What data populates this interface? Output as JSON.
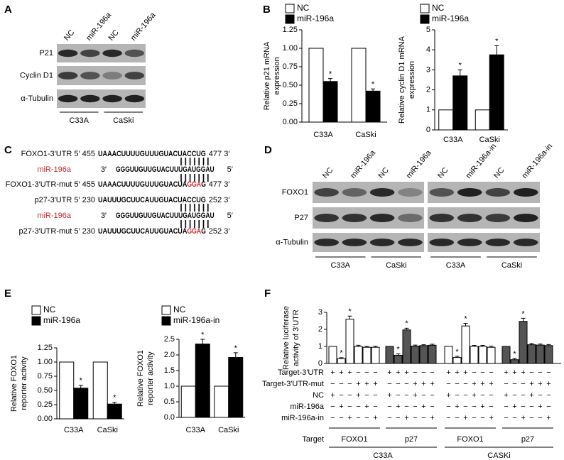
{
  "panel_labels": [
    "A",
    "B",
    "C",
    "D",
    "E",
    "F"
  ],
  "blots": [
    {
      "lanes": [
        "NC",
        "miR-196a",
        "NC",
        "miR-196a"
      ],
      "rows": [
        "P21",
        "Cyclin D1",
        "α-Tubulin"
      ],
      "groups": [
        "C33A",
        "CaSki"
      ]
    },
    {
      "lanes": [
        "NC",
        "miR-196a",
        "NC",
        "miR-196a",
        "NC",
        "miR-196a-in",
        "NC",
        "miR-196a-in"
      ],
      "rows": [
        "FOXO1",
        "P27",
        "α-Tubulin"
      ],
      "groups": [
        "C33A",
        "CaSki",
        "C33A",
        "CaSki"
      ]
    }
  ],
  "sequences": [
    {
      "prefix": "FOXO1-3′UTR 5′ 455",
      "seq": "UAAACUUUUGUUUGUACUACCUG",
      "suffix": "477 3′"
    },
    {
      "name": "miR-196a",
      "end": "3′",
      "seq": "GGGUUGUUGUACUUUGAUGGAU",
      "suffix": "5′"
    },
    {
      "prefix": "FOXO1-3′UTR-mut 5′ 455",
      "seq": "UAAACUUUUGUUUGUACUA",
      "mut": "GGA",
      "seq_end": "G",
      "suffix": "477 3′"
    },
    {
      "prefix": "p27-3′UTR 5′ 230",
      "seq": "UAUUUGCUUCAUUGUACUACCUG",
      "suffix": "252 3′"
    },
    {
      "name": "miR-196a",
      "end": "3′",
      "seq": "GGGUUGUUGUACUUUGAUGGAU",
      "suffix": "5′"
    },
    {
      "prefix": "p27-3′UTR-mut 5′ 230",
      "seq": "UAUUUGCUUCAUUGUACUA",
      "mut": "GGA",
      "seq_end": "G",
      "suffix": "252 3′"
    }
  ],
  "chart_data": [
    {
      "type": "bar",
      "ylabel": [
        "Relative p21 mRNA",
        "expression"
      ],
      "categories": [
        "C33A",
        "CaSki"
      ],
      "series": [
        {
          "name": "NC",
          "color": "#ffffff",
          "values": [
            1,
            1
          ]
        },
        {
          "name": "miR-196a",
          "color": "#000000",
          "values": [
            0.55,
            0.42
          ],
          "errors": [
            0.04,
            0.03
          ],
          "significance": [
            "*",
            "*"
          ]
        }
      ],
      "ylim": [
        0,
        1.25
      ],
      "yticks": [
        {
          "value": 0,
          "label": "0.00"
        },
        0.25,
        {
          "value": 0.5,
          "label": "0.50"
        },
        0.75,
        {
          "value": 1,
          "label": "1.00"
        },
        1.25
      ]
    },
    {
      "type": "bar",
      "ylabel": [
        "Relative cyclin D1 mRNA",
        "expression"
      ],
      "categories": [
        "C33A",
        "CaSki"
      ],
      "series": [
        {
          "name": "NC",
          "color": "#ffffff",
          "values": [
            1,
            1
          ]
        },
        {
          "name": "miR-196a",
          "color": "#000000",
          "values": [
            2.7,
            3.75
          ],
          "errors": [
            0.3,
            0.45
          ],
          "significance": [
            "*",
            "*"
          ]
        }
      ],
      "ylim": [
        0,
        5
      ],
      "yticks": [
        0,
        1,
        2,
        3,
        4,
        5
      ]
    },
    {
      "type": "bar",
      "ylabel": [
        "Relative FOXO1",
        "reporter activity"
      ],
      "categories": [
        "C33A",
        "CaSki"
      ],
      "series": [
        {
          "name": "NC",
          "color": "#ffffff",
          "values": [
            1,
            1
          ]
        },
        {
          "name": "miR-196a",
          "color": "#000000",
          "values": [
            0.54,
            0.26
          ],
          "errors": [
            0.05,
            0.03
          ],
          "significance": [
            "*",
            "*"
          ]
        }
      ],
      "ylim": [
        0,
        1.25
      ],
      "yticks": [
        {
          "value": 0,
          "label": "0.00"
        },
        0.25,
        {
          "value": 0.5,
          "label": "0.50"
        },
        0.75,
        {
          "value": 1,
          "label": "1.00"
        },
        1.25
      ]
    },
    {
      "type": "bar",
      "ylabel": [
        "Relative FOXO1",
        "reporter activity"
      ],
      "categories": [
        "C33A",
        "CaSki"
      ],
      "series": [
        {
          "name": "NC",
          "color": "#ffffff",
          "values": [
            1,
            1
          ]
        },
        {
          "name": "miR-196a-in",
          "color": "#000000",
          "values": [
            2.35,
            1.92
          ],
          "errors": [
            0.15,
            0.15
          ],
          "significance": [
            "*",
            "*"
          ]
        }
      ],
      "ylim": [
        0,
        2.5
      ],
      "yticks": [
        {
          "value": 0,
          "label": "0.0"
        },
        0.5,
        {
          "value": 1,
          "label": "1.0"
        },
        1.5,
        {
          "value": 2,
          "label": "2.0"
        },
        2.5
      ]
    },
    {
      "type": "bar",
      "ylabel": [
        "Relative luciferase",
        "activity of 3′UTR"
      ],
      "ylim": [
        0,
        3
      ],
      "yticks": [
        0,
        1,
        2,
        3
      ],
      "groups": [
        {
          "target": "FOXO1",
          "color": "#ffffff",
          "values": [
            1,
            0.28,
            2.6,
            1.0,
            0.95,
            0.95
          ],
          "errors": [
            null,
            0.06,
            0.18,
            0.07,
            0.05,
            0.06
          ],
          "significance": [
            null,
            "*",
            "*",
            null,
            null,
            null
          ]
        },
        {
          "target": "p27",
          "color": "#555555",
          "values": [
            1,
            0.48,
            1.97,
            1.02,
            1.05,
            1.07
          ],
          "errors": [
            null,
            0.08,
            0.1,
            0.06,
            0.05,
            0.06
          ],
          "significance": [
            null,
            "*",
            "*",
            null,
            null,
            null
          ]
        },
        {
          "target": "FOXO1",
          "color": "#ffffff",
          "values": [
            1,
            0.35,
            2.2,
            1.0,
            1.0,
            0.95
          ],
          "errors": [
            null,
            0.07,
            0.15,
            0.06,
            0.06,
            0.06
          ],
          "significance": [
            null,
            "*",
            "*",
            null,
            null,
            null
          ]
        },
        {
          "target": "p27",
          "color": "#555555",
          "values": [
            1,
            0.22,
            2.47,
            1.1,
            1.08,
            1.05
          ],
          "errors": [
            null,
            0.07,
            0.18,
            0.07,
            0.06,
            0.06
          ],
          "significance": [
            null,
            "*",
            "*",
            null,
            null,
            null
          ]
        }
      ],
      "condition_rows": [
        {
          "label": "Target-3′UTR",
          "signs": [
            "+",
            "+",
            "+",
            "−",
            "−",
            "−",
            "+",
            "+",
            "+",
            "−",
            "−",
            "−",
            "+",
            "+",
            "+",
            "−",
            "−",
            "−",
            "+",
            "+",
            "+",
            "−",
            "−",
            "−"
          ]
        },
        {
          "label": "Target-3′UTR-mut",
          "signs": [
            "−",
            "−",
            "−",
            "+",
            "+",
            "+",
            "−",
            "−",
            "−",
            "+",
            "+",
            "+",
            "−",
            "−",
            "−",
            "+",
            "+",
            "+",
            "−",
            "−",
            "−",
            "+",
            "+",
            "+"
          ]
        },
        {
          "label": "NC",
          "signs": [
            "+",
            "−",
            "−",
            "+",
            "−",
            "−",
            "+",
            "−",
            "−",
            "+",
            "−",
            "−",
            "+",
            "−",
            "−",
            "+",
            "−",
            "−",
            "+",
            "−",
            "−",
            "+",
            "−",
            "−"
          ]
        },
        {
          "label": "miR-196a",
          "signs": [
            "−",
            "+",
            "−",
            "−",
            "+",
            "−",
            "−",
            "+",
            "−",
            "−",
            "+",
            "−",
            "−",
            "+",
            "−",
            "−",
            "+",
            "−",
            "−",
            "+",
            "−",
            "−",
            "+",
            "−"
          ]
        },
        {
          "label": "miR-196a-in",
          "signs": [
            "−",
            "−",
            "+",
            "−",
            "−",
            "+",
            "−",
            "−",
            "+",
            "−",
            "−",
            "+",
            "−",
            "−",
            "+",
            "−",
            "−",
            "+",
            "−",
            "−",
            "+",
            "−",
            "−",
            "+"
          ]
        }
      ],
      "target_label": "Target",
      "cell_lines": [
        "C33A",
        "CASKi"
      ]
    }
  ]
}
